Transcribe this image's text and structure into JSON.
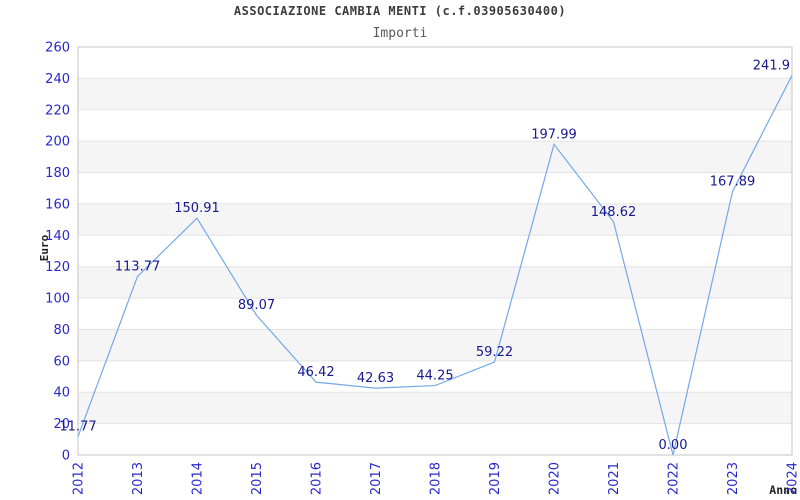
{
  "chart_data": {
    "type": "line",
    "title": "ASSOCIAZIONE CAMBIA MENTI (c.f.03905630400)",
    "subtitle": "Importi",
    "xlabel": "Anno",
    "ylabel": "Euro",
    "categories": [
      "2012",
      "2013",
      "2014",
      "2015",
      "2016",
      "2017",
      "2018",
      "2019",
      "2020",
      "2021",
      "2022",
      "2023",
      "2024"
    ],
    "values": [
      11.77,
      113.77,
      150.91,
      89.07,
      46.42,
      42.63,
      44.25,
      59.22,
      197.99,
      148.62,
      0.0,
      167.89,
      241.9
    ],
    "point_labels": [
      "11.77",
      "113.77",
      "150.91",
      "89.07",
      "46.42",
      "42.63",
      "44.25",
      "59.22",
      "197.99",
      "148.62",
      "0.00",
      "167.89",
      "241.9"
    ],
    "ylim": [
      0,
      260
    ],
    "ytick_step": 20,
    "grid": "horizontal-gridlines-with-alternating-bands",
    "legend_position": "none",
    "colors": {
      "line": "#74a9e6",
      "tick_labels": "#2828cc",
      "point_labels": "#18188f",
      "band": "#f5f5f5",
      "gridline": "#e4e4e4",
      "plot_border": "#c6c6c6",
      "title": "#3c3c3c",
      "subtitle": "#5a5a5a",
      "axis_titles": "#222222"
    }
  }
}
